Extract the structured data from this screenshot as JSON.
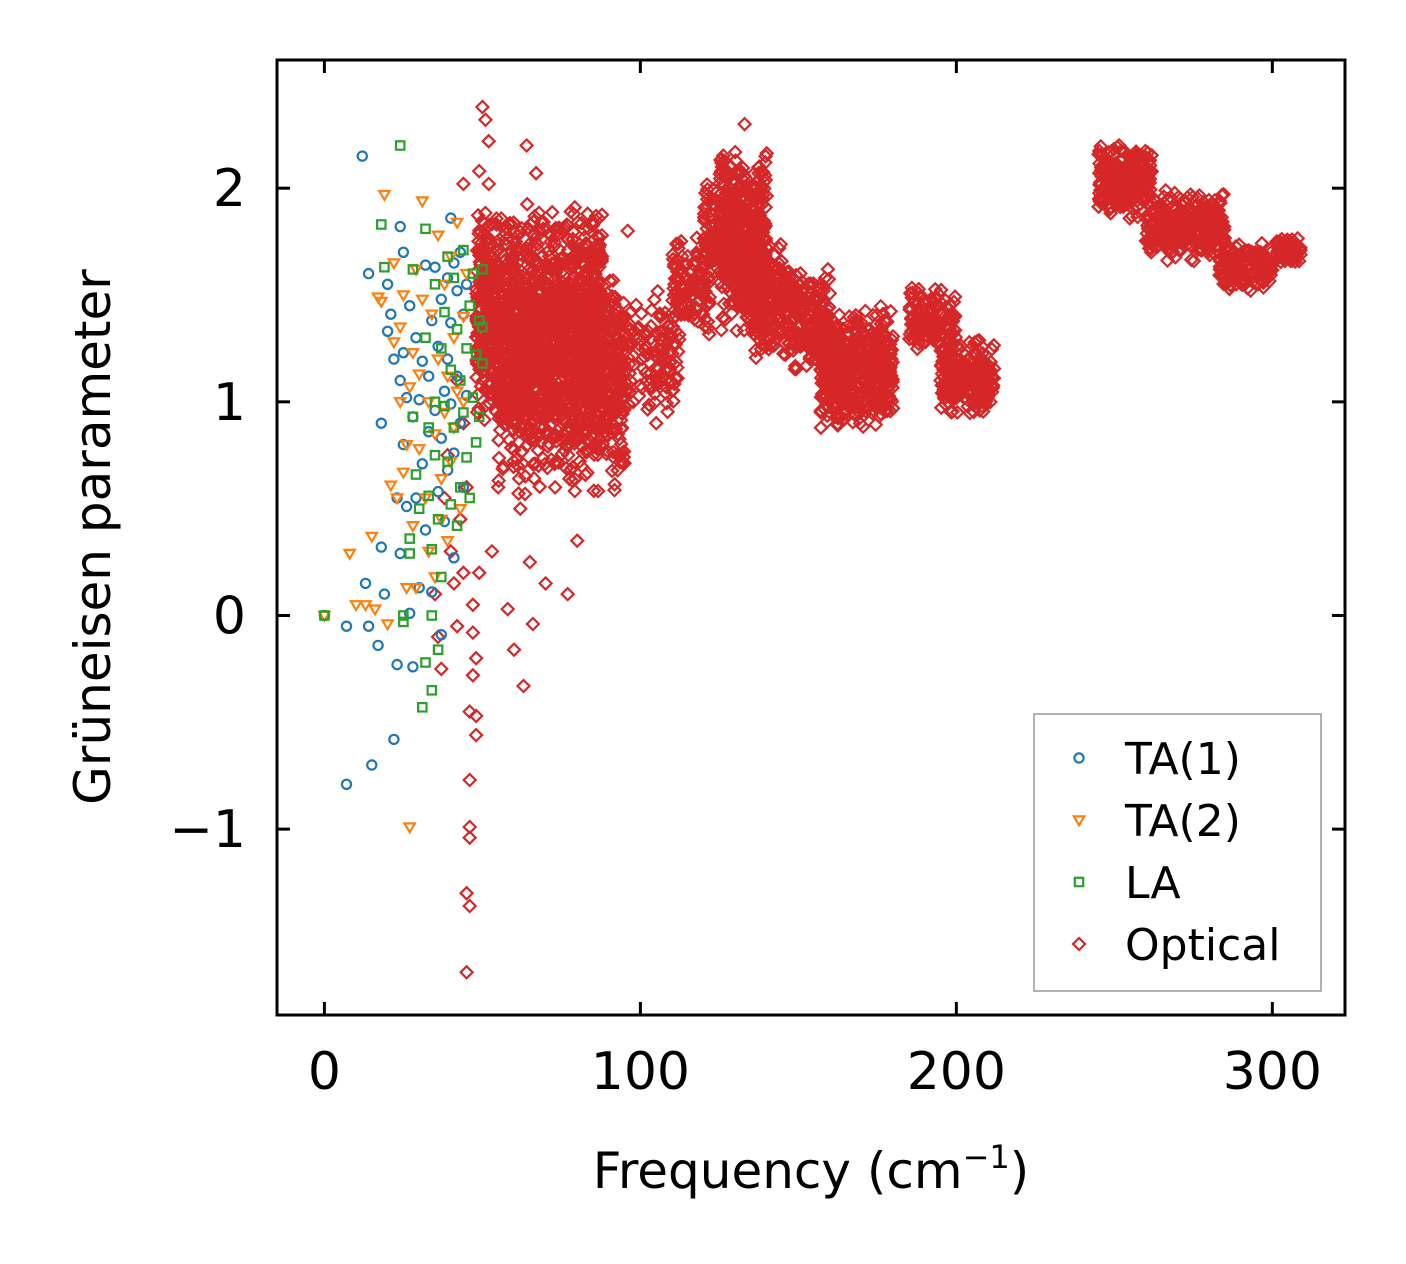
{
  "chart_data": {
    "type": "scatter",
    "title": "",
    "xlabel": "Frequency (cm",
    "xlabel_sup": "−1",
    "xlabel_close": ")",
    "ylabel": "Grüneisen parameter",
    "xlim": [
      -15,
      323
    ],
    "ylim": [
      -1.87,
      2.6
    ],
    "xticks": [
      0,
      100,
      200,
      300
    ],
    "yticks": [
      -1,
      0,
      1,
      2
    ],
    "xtick_labels": [
      "0",
      "100",
      "200",
      "300"
    ],
    "ytick_labels": [
      "−1",
      "0",
      "1",
      "2"
    ],
    "grid": false,
    "legend_position": "lower-right",
    "series": [
      {
        "name": "TA(1)",
        "marker": "circle",
        "color": "#1f77b4",
        "points": [
          [
            0,
            0
          ],
          [
            7,
            -0.05
          ],
          [
            7,
            -0.79
          ],
          [
            12,
            2.15
          ],
          [
            13,
            0.15
          ],
          [
            14,
            -0.05
          ],
          [
            14,
            1.6
          ],
          [
            15,
            -0.7
          ],
          [
            17,
            -0.14
          ],
          [
            18,
            0.9
          ],
          [
            18,
            0.32
          ],
          [
            19,
            0.1
          ],
          [
            20,
            1.55
          ],
          [
            20,
            1.33
          ],
          [
            21,
            1.41
          ],
          [
            22,
            -0.58
          ],
          [
            22,
            1.2
          ],
          [
            23,
            0.55
          ],
          [
            23,
            -0.23
          ],
          [
            24,
            1.82
          ],
          [
            24,
            1.1
          ],
          [
            24,
            0.29
          ],
          [
            25,
            1.7
          ],
          [
            25,
            1.23
          ],
          [
            25,
            0.8
          ],
          [
            26,
            1.02
          ],
          [
            26,
            0.51
          ],
          [
            27,
            1.45
          ],
          [
            27,
            0.01
          ],
          [
            28,
            0.93
          ],
          [
            28,
            -0.24
          ],
          [
            29,
            1.3
          ],
          [
            29,
            0.55
          ],
          [
            30,
            0.13
          ],
          [
            30,
            1.01
          ],
          [
            31,
            1.19
          ],
          [
            31,
            0.71
          ],
          [
            32,
            1.64
          ],
          [
            32,
            0.4
          ],
          [
            33,
            1.12
          ],
          [
            33,
            0.86
          ],
          [
            34,
            1.38
          ],
          [
            34,
            0.11
          ],
          [
            35,
            1.63
          ],
          [
            35,
            0.96
          ],
          [
            36,
            1.26
          ],
          [
            36,
            0.58
          ],
          [
            37,
            1.48
          ],
          [
            37,
            0.83
          ],
          [
            37,
            -0.09
          ],
          [
            38,
            1.05
          ],
          [
            38,
            0.44
          ],
          [
            39,
            1.58
          ],
          [
            39,
            1.2
          ],
          [
            39,
            0.68
          ],
          [
            40,
            1.86
          ],
          [
            40,
            1.37
          ],
          [
            40,
            0.99
          ],
          [
            41,
            1.65
          ],
          [
            41,
            0.27
          ],
          [
            41,
            0.76
          ],
          [
            42,
            1.52
          ],
          [
            42,
            1.12
          ],
          [
            43,
            1.7
          ],
          [
            43,
            0.9
          ],
          [
            44,
            1.41
          ],
          [
            44,
            0.6
          ],
          [
            45,
            1.55
          ],
          [
            45,
            1.03
          ]
        ]
      },
      {
        "name": "TA(2)",
        "marker": "triangle-down",
        "color": "#ff7f0e",
        "points": [
          [
            0,
            0
          ],
          [
            8,
            0.29
          ],
          [
            10,
            0.05
          ],
          [
            13,
            0.05
          ],
          [
            15,
            0.37
          ],
          [
            16,
            0.03
          ],
          [
            17,
            1.49
          ],
          [
            18,
            1.47
          ],
          [
            19,
            1.97
          ],
          [
            20,
            -0.04
          ],
          [
            21,
            0.61
          ],
          [
            22,
            1.65
          ],
          [
            22,
            1.28
          ],
          [
            23,
            0.55
          ],
          [
            24,
            1.35
          ],
          [
            24,
            1.0
          ],
          [
            25,
            0.67
          ],
          [
            25,
            1.5
          ],
          [
            26,
            0.13
          ],
          [
            26,
            0.8
          ],
          [
            27,
            1.07
          ],
          [
            27,
            -0.99
          ],
          [
            28,
            0.42
          ],
          [
            28,
            1.23
          ],
          [
            29,
            1.62
          ],
          [
            29,
            0.13
          ],
          [
            30,
            1.13
          ],
          [
            30,
            0.78
          ],
          [
            31,
            1.94
          ],
          [
            31,
            1.48
          ],
          [
            32,
            0.55
          ],
          [
            33,
            1.0
          ],
          [
            33,
            0.3
          ],
          [
            34,
            1.41
          ],
          [
            35,
            0.85
          ],
          [
            35,
            0.18
          ],
          [
            36,
            1.78
          ],
          [
            36,
            1.2
          ],
          [
            37,
            0.64
          ],
          [
            37,
            0.45
          ],
          [
            38,
            1.55
          ],
          [
            38,
            0.95
          ],
          [
            39,
            1.12
          ],
          [
            39,
            0.35
          ],
          [
            40,
            1.68
          ],
          [
            40,
            0.72
          ],
          [
            41,
            1.3
          ],
          [
            41,
            0.88
          ],
          [
            42,
            1.84
          ],
          [
            42,
            1.05
          ],
          [
            43,
            0.5
          ],
          [
            44,
            1.4
          ],
          [
            44,
            1.0
          ],
          [
            45,
            1.6
          ]
        ]
      },
      {
        "name": "LA",
        "marker": "square",
        "color": "#2ca02c",
        "points": [
          [
            0,
            0
          ],
          [
            18,
            1.83
          ],
          [
            19,
            1.63
          ],
          [
            24,
            2.2
          ],
          [
            25,
            -0.03
          ],
          [
            25,
            0.0
          ],
          [
            27,
            0.36
          ],
          [
            27,
            0.29
          ],
          [
            28,
            1.62
          ],
          [
            28,
            0.93
          ],
          [
            29,
            0.66
          ],
          [
            30,
            0.5
          ],
          [
            31,
            -0.43
          ],
          [
            32,
            1.81
          ],
          [
            32,
            1.3
          ],
          [
            32,
            -0.22
          ],
          [
            33,
            0.88
          ],
          [
            33,
            0.56
          ],
          [
            34,
            -0.35
          ],
          [
            34,
            0.0
          ],
          [
            34,
            0.31
          ],
          [
            35,
            1.55
          ],
          [
            35,
            1.0
          ],
          [
            35,
            0.75
          ],
          [
            36,
            0.45
          ],
          [
            36,
            -0.16
          ],
          [
            37,
            1.25
          ],
          [
            37,
            0.18
          ],
          [
            38,
            1.42
          ],
          [
            38,
            0.98
          ],
          [
            39,
            1.68
          ],
          [
            39,
            0.72
          ],
          [
            40,
            1.15
          ],
          [
            40,
            0.52
          ],
          [
            41,
            1.58
          ],
          [
            41,
            0.88
          ],
          [
            42,
            0.42
          ],
          [
            42,
            1.34
          ],
          [
            43,
            1.1
          ],
          [
            43,
            0.6
          ],
          [
            44,
            1.71
          ],
          [
            44,
            0.95
          ],
          [
            45,
            1.25
          ],
          [
            45,
            0.74
          ],
          [
            46,
            1.45
          ],
          [
            46,
            0.55
          ],
          [
            47,
            1.02
          ],
          [
            47,
            1.6
          ],
          [
            48,
            1.22
          ],
          [
            48,
            0.81
          ],
          [
            49,
            1.38
          ],
          [
            49,
            0.93
          ],
          [
            50,
            1.35
          ],
          [
            50,
            1.18
          ],
          [
            50,
            1.62
          ]
        ]
      },
      {
        "name": "Optical",
        "marker": "diamond",
        "color": "#d62728",
        "clusters": [
          {
            "xmin": 48,
            "xmax": 88,
            "ymin": 0.8,
            "ymax": 1.95,
            "n": 1300
          },
          {
            "xmin": 55,
            "xmax": 95,
            "ymin": 0.55,
            "ymax": 1.6,
            "n": 600
          },
          {
            "xmin": 88,
            "xmax": 112,
            "ymin": 0.9,
            "ymax": 1.55,
            "n": 200
          },
          {
            "xmin": 110,
            "xmax": 122,
            "ymin": 1.25,
            "ymax": 1.8,
            "n": 120
          },
          {
            "xmin": 120,
            "xmax": 128,
            "ymin": 1.6,
            "ymax": 2.1,
            "n": 100
          },
          {
            "xmin": 125,
            "xmax": 140,
            "ymin": 1.3,
            "ymax": 2.2,
            "n": 450
          },
          {
            "xmin": 135,
            "xmax": 148,
            "ymin": 1.2,
            "ymax": 1.75,
            "n": 220
          },
          {
            "xmin": 148,
            "xmax": 160,
            "ymin": 1.1,
            "ymax": 1.65,
            "n": 200
          },
          {
            "xmin": 157,
            "xmax": 180,
            "ymin": 0.85,
            "ymax": 1.45,
            "n": 500
          },
          {
            "xmin": 185,
            "xmax": 200,
            "ymin": 1.2,
            "ymax": 1.55,
            "n": 140
          },
          {
            "xmin": 195,
            "xmax": 212,
            "ymin": 0.92,
            "ymax": 1.3,
            "n": 280
          },
          {
            "xmin": 245,
            "xmax": 262,
            "ymin": 1.85,
            "ymax": 2.22,
            "n": 250
          },
          {
            "xmin": 260,
            "xmax": 285,
            "ymin": 1.65,
            "ymax": 2.0,
            "n": 300
          },
          {
            "xmin": 283,
            "xmax": 300,
            "ymin": 1.5,
            "ymax": 1.75,
            "n": 150
          },
          {
            "xmin": 301,
            "xmax": 309,
            "ymin": 1.65,
            "ymax": 1.78,
            "n": 60
          }
        ],
        "points": [
          [
            35,
            0.1
          ],
          [
            36,
            -0.1
          ],
          [
            37,
            -0.25
          ],
          [
            38,
            0.55
          ],
          [
            39,
            0.75
          ],
          [
            40,
            0.3
          ],
          [
            41,
            0.15
          ],
          [
            42,
            -0.05
          ],
          [
            42,
            1.1
          ],
          [
            43,
            0.45
          ],
          [
            44,
            0.9
          ],
          [
            44,
            0.2
          ],
          [
            44,
            2.02
          ],
          [
            45,
            0.6
          ],
          [
            45,
            -1.67
          ],
          [
            45,
            -1.3
          ],
          [
            46,
            -1.36
          ],
          [
            46,
            -1.04
          ],
          [
            46,
            -0.99
          ],
          [
            46,
            -0.77
          ],
          [
            46,
            -0.45
          ],
          [
            47,
            -0.28
          ],
          [
            47,
            0.05
          ],
          [
            47,
            -0.08
          ],
          [
            48,
            -0.56
          ],
          [
            48,
            -0.47
          ],
          [
            48,
            -0.2
          ],
          [
            49,
            0.2
          ],
          [
            49,
            2.08
          ],
          [
            50,
            2.38
          ],
          [
            51,
            2.32
          ],
          [
            52,
            2.22
          ],
          [
            52,
            2.02
          ],
          [
            53,
            0.3
          ],
          [
            55,
            0.6
          ],
          [
            58,
            0.03
          ],
          [
            60,
            -0.16
          ],
          [
            62,
            0.5
          ],
          [
            63,
            -0.33
          ],
          [
            64,
            2.2
          ],
          [
            65,
            0.25
          ],
          [
            66,
            -0.04
          ],
          [
            67,
            2.07
          ],
          [
            70,
            0.15
          ],
          [
            73,
            0.6
          ],
          [
            77,
            0.1
          ],
          [
            80,
            0.35
          ],
          [
            86,
            1.87
          ],
          [
            96,
            1.8
          ],
          [
            105,
            0.9
          ],
          [
            133,
            2.3
          ]
        ]
      }
    ]
  }
}
